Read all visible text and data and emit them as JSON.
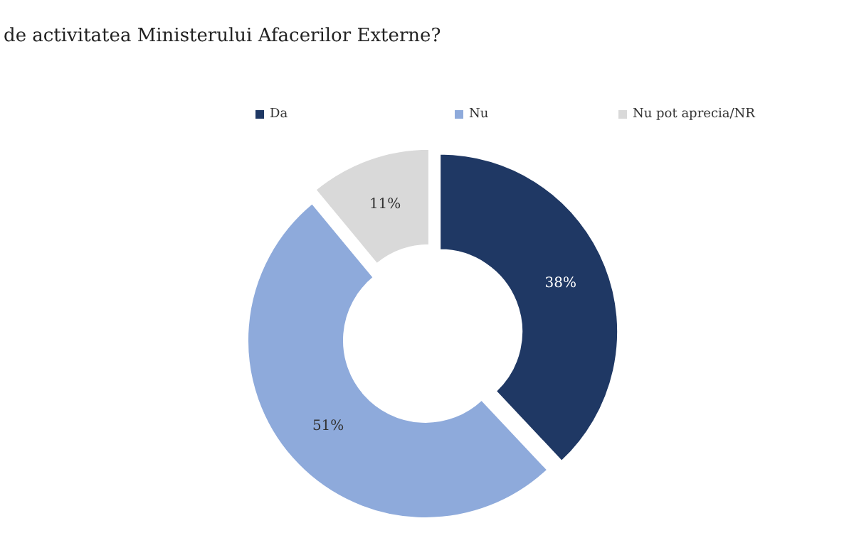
{
  "chart_data": {
    "type": "donut",
    "title": "de activitatea Ministerului Afacerilor Externe?",
    "categories": [
      "Da",
      "Nu",
      "Nu pot aprecia/NR"
    ],
    "values": [
      38,
      51,
      11
    ],
    "colors": [
      "#1f3864",
      "#8eaadb",
      "#d9d9d9"
    ],
    "value_labels": [
      "38%",
      "51%",
      "11%"
    ],
    "legend": "top"
  }
}
